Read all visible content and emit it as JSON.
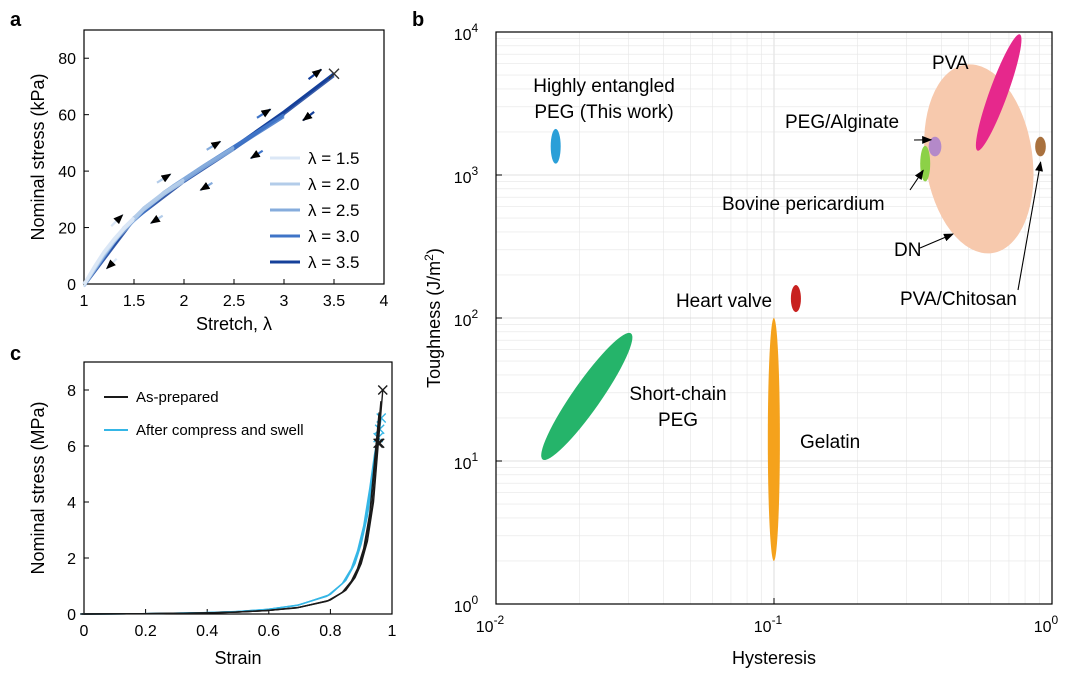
{
  "chart_data": [
    {
      "panel": "a",
      "type": "line",
      "xlabel": "Stretch, λ",
      "ylabel": "Nominal stress (kPa)",
      "xlim": [
        1,
        4
      ],
      "ylim": [
        0,
        90
      ],
      "xticks": [
        1,
        1.5,
        2,
        2.5,
        3,
        3.5,
        4
      ],
      "xtick_labels": [
        "1",
        "1.5",
        "2",
        "2.5",
        "3",
        "3.5",
        "4"
      ],
      "yticks": [
        0,
        20,
        40,
        60,
        80
      ],
      "ytick_labels": [
        "0",
        "20",
        "40",
        "60",
        "80"
      ],
      "legend_position": "bottom-right",
      "series": [
        {
          "name": "λ = 1.5",
          "color": "#dbe7f6",
          "x": [
            1,
            1.1,
            1.2,
            1.3,
            1.4,
            1.5
          ],
          "y": [
            0,
            6,
            11.5,
            16,
            20,
            23.5
          ]
        },
        {
          "name": "λ = 2.0",
          "color": "#b3cce9",
          "x": [
            1,
            1.2,
            1.4,
            1.6,
            1.8,
            2.0
          ],
          "y": [
            0,
            11,
            20,
            27,
            32.5,
            37
          ]
        },
        {
          "name": "λ = 2.5",
          "color": "#86acdc",
          "x": [
            1,
            1.3,
            1.6,
            1.9,
            2.2,
            2.5
          ],
          "y": [
            0,
            15.5,
            27,
            35,
            42,
            48.5
          ]
        },
        {
          "name": "λ = 3.0",
          "color": "#3f74c7",
          "x": [
            1,
            1.4,
            1.8,
            2.2,
            2.6,
            3.0
          ],
          "y": [
            0,
            20,
            32.5,
            42,
            51,
            60
          ]
        },
        {
          "name": "λ = 3.5",
          "color": "#15409a",
          "x": [
            1,
            1.5,
            2.0,
            2.5,
            3.0,
            3.5
          ],
          "y": [
            0,
            23.5,
            37,
            48.5,
            61,
            74.5
          ]
        }
      ],
      "fracture_marker": {
        "x": 3.5,
        "y": 74.5,
        "symbol": "×"
      }
    },
    {
      "panel": "b",
      "type": "scatter",
      "xlabel": "Hysteresis",
      "ylabel": "Toughness (J/m²)",
      "xscale": "log",
      "yscale": "log",
      "xlim": [
        0.01,
        1
      ],
      "ylim": [
        1,
        10000
      ],
      "grid": true,
      "xtick_labels": [
        {
          "base": "10",
          "exp": "-2"
        },
        {
          "base": "10",
          "exp": "-1"
        },
        {
          "base": "10",
          "exp": "0"
        }
      ],
      "ytick_labels": [
        {
          "base": "10",
          "exp": "0"
        },
        {
          "base": "10",
          "exp": "1"
        },
        {
          "base": "10",
          "exp": "2"
        },
        {
          "base": "10",
          "exp": "3"
        },
        {
          "base": "10",
          "exp": "4"
        }
      ],
      "regions": [
        {
          "name": "Highly entangled PEG (This work)",
          "label_lines": [
            "Highly entangled",
            "PEG (This work)"
          ],
          "color": "#2a9fd8",
          "hyst": [
            0.016,
            0.0168
          ],
          "tough": [
            1200,
            2100
          ]
        },
        {
          "name": "Short-chain PEG",
          "label_lines": [
            "Short-chain",
            "PEG"
          ],
          "color": "#25b46a",
          "hyst": [
            0.015,
            0.03
          ],
          "tough": [
            10,
            80
          ]
        },
        {
          "name": "Gelatin",
          "label_lines": [
            "Gelatin"
          ],
          "color": "#f5a21c",
          "hyst": [
            0.095,
            0.105
          ],
          "tough": [
            2,
            100
          ]
        },
        {
          "name": "Heart valve",
          "label_lines": [
            "Heart valve"
          ],
          "color": "#c8211f",
          "hyst": [
            0.115,
            0.125
          ],
          "tough": [
            110,
            170
          ]
        },
        {
          "name": "PVA",
          "label_lines": [
            "PVA"
          ],
          "color": "#e6288c",
          "hyst": [
            0.53,
            0.78
          ],
          "tough": [
            1500,
            9500
          ]
        },
        {
          "name": "DN",
          "label_lines": [
            "DN"
          ],
          "color": "#f7c9ad",
          "hyst": [
            0.35,
            0.85
          ],
          "tough": [
            280,
            6000
          ]
        },
        {
          "name": "PEG/Alginate",
          "label_lines": [
            "PEG/Alginate"
          ],
          "color": "#b489c9",
          "hyst": [
            0.36,
            0.4
          ],
          "tough": [
            1350,
            1850
          ]
        },
        {
          "name": "Bovine pericardium",
          "label_lines": [
            "Bovine pericardium"
          ],
          "color": "#8cd147",
          "hyst": [
            0.34,
            0.36
          ],
          "tough": [
            900,
            1600
          ]
        },
        {
          "name": "PVA/Chitosan",
          "label_lines": [
            "PVA/Chitosan"
          ],
          "color": "#a9713e",
          "hyst": [
            0.87,
            0.95
          ],
          "tough": [
            1350,
            1850
          ]
        }
      ]
    },
    {
      "panel": "c",
      "type": "line",
      "xlabel": "Strain",
      "ylabel": "Nominal stress (MPa)",
      "xlim": [
        0,
        1
      ],
      "ylim": [
        0,
        9
      ],
      "xticks": [
        0,
        0.2,
        0.4,
        0.6,
        0.8,
        1
      ],
      "xtick_labels": [
        "0",
        "0.2",
        "0.4",
        "0.6",
        "0.8",
        "1"
      ],
      "yticks": [
        0,
        2,
        4,
        6,
        8
      ],
      "ytick_labels": [
        "0",
        "2",
        "4",
        "6",
        "8"
      ],
      "legend_position": "top-left",
      "series": [
        {
          "name": "As-prepared",
          "color": "#1a1a1a",
          "x": [
            0,
            0.2,
            0.4,
            0.5,
            0.6,
            0.7,
            0.8,
            0.85,
            0.88,
            0.9,
            0.92,
            0.94,
            0.955,
            0.97
          ],
          "y": [
            0,
            0.01,
            0.04,
            0.07,
            0.13,
            0.24,
            0.5,
            0.85,
            1.3,
            1.8,
            2.6,
            4.0,
            6.0,
            8.0
          ],
          "fracture_points": [
            [
              0.955,
              6.1
            ],
            [
              0.96,
              6.1
            ],
            [
              0.97,
              8.0
            ]
          ]
        },
        {
          "name": "After compress and swell",
          "color": "#35b6e6",
          "x": [
            0,
            0.2,
            0.4,
            0.5,
            0.6,
            0.7,
            0.8,
            0.85,
            0.88,
            0.9,
            0.92,
            0.94,
            0.955,
            0.965
          ],
          "y": [
            0,
            0.012,
            0.05,
            0.09,
            0.17,
            0.33,
            0.7,
            1.2,
            1.8,
            2.5,
            3.5,
            5.0,
            6.3,
            7.0
          ],
          "fracture_points": [
            [
              0.955,
              6.3
            ],
            [
              0.96,
              6.6
            ],
            [
              0.965,
              7.0
            ]
          ]
        }
      ]
    }
  ]
}
